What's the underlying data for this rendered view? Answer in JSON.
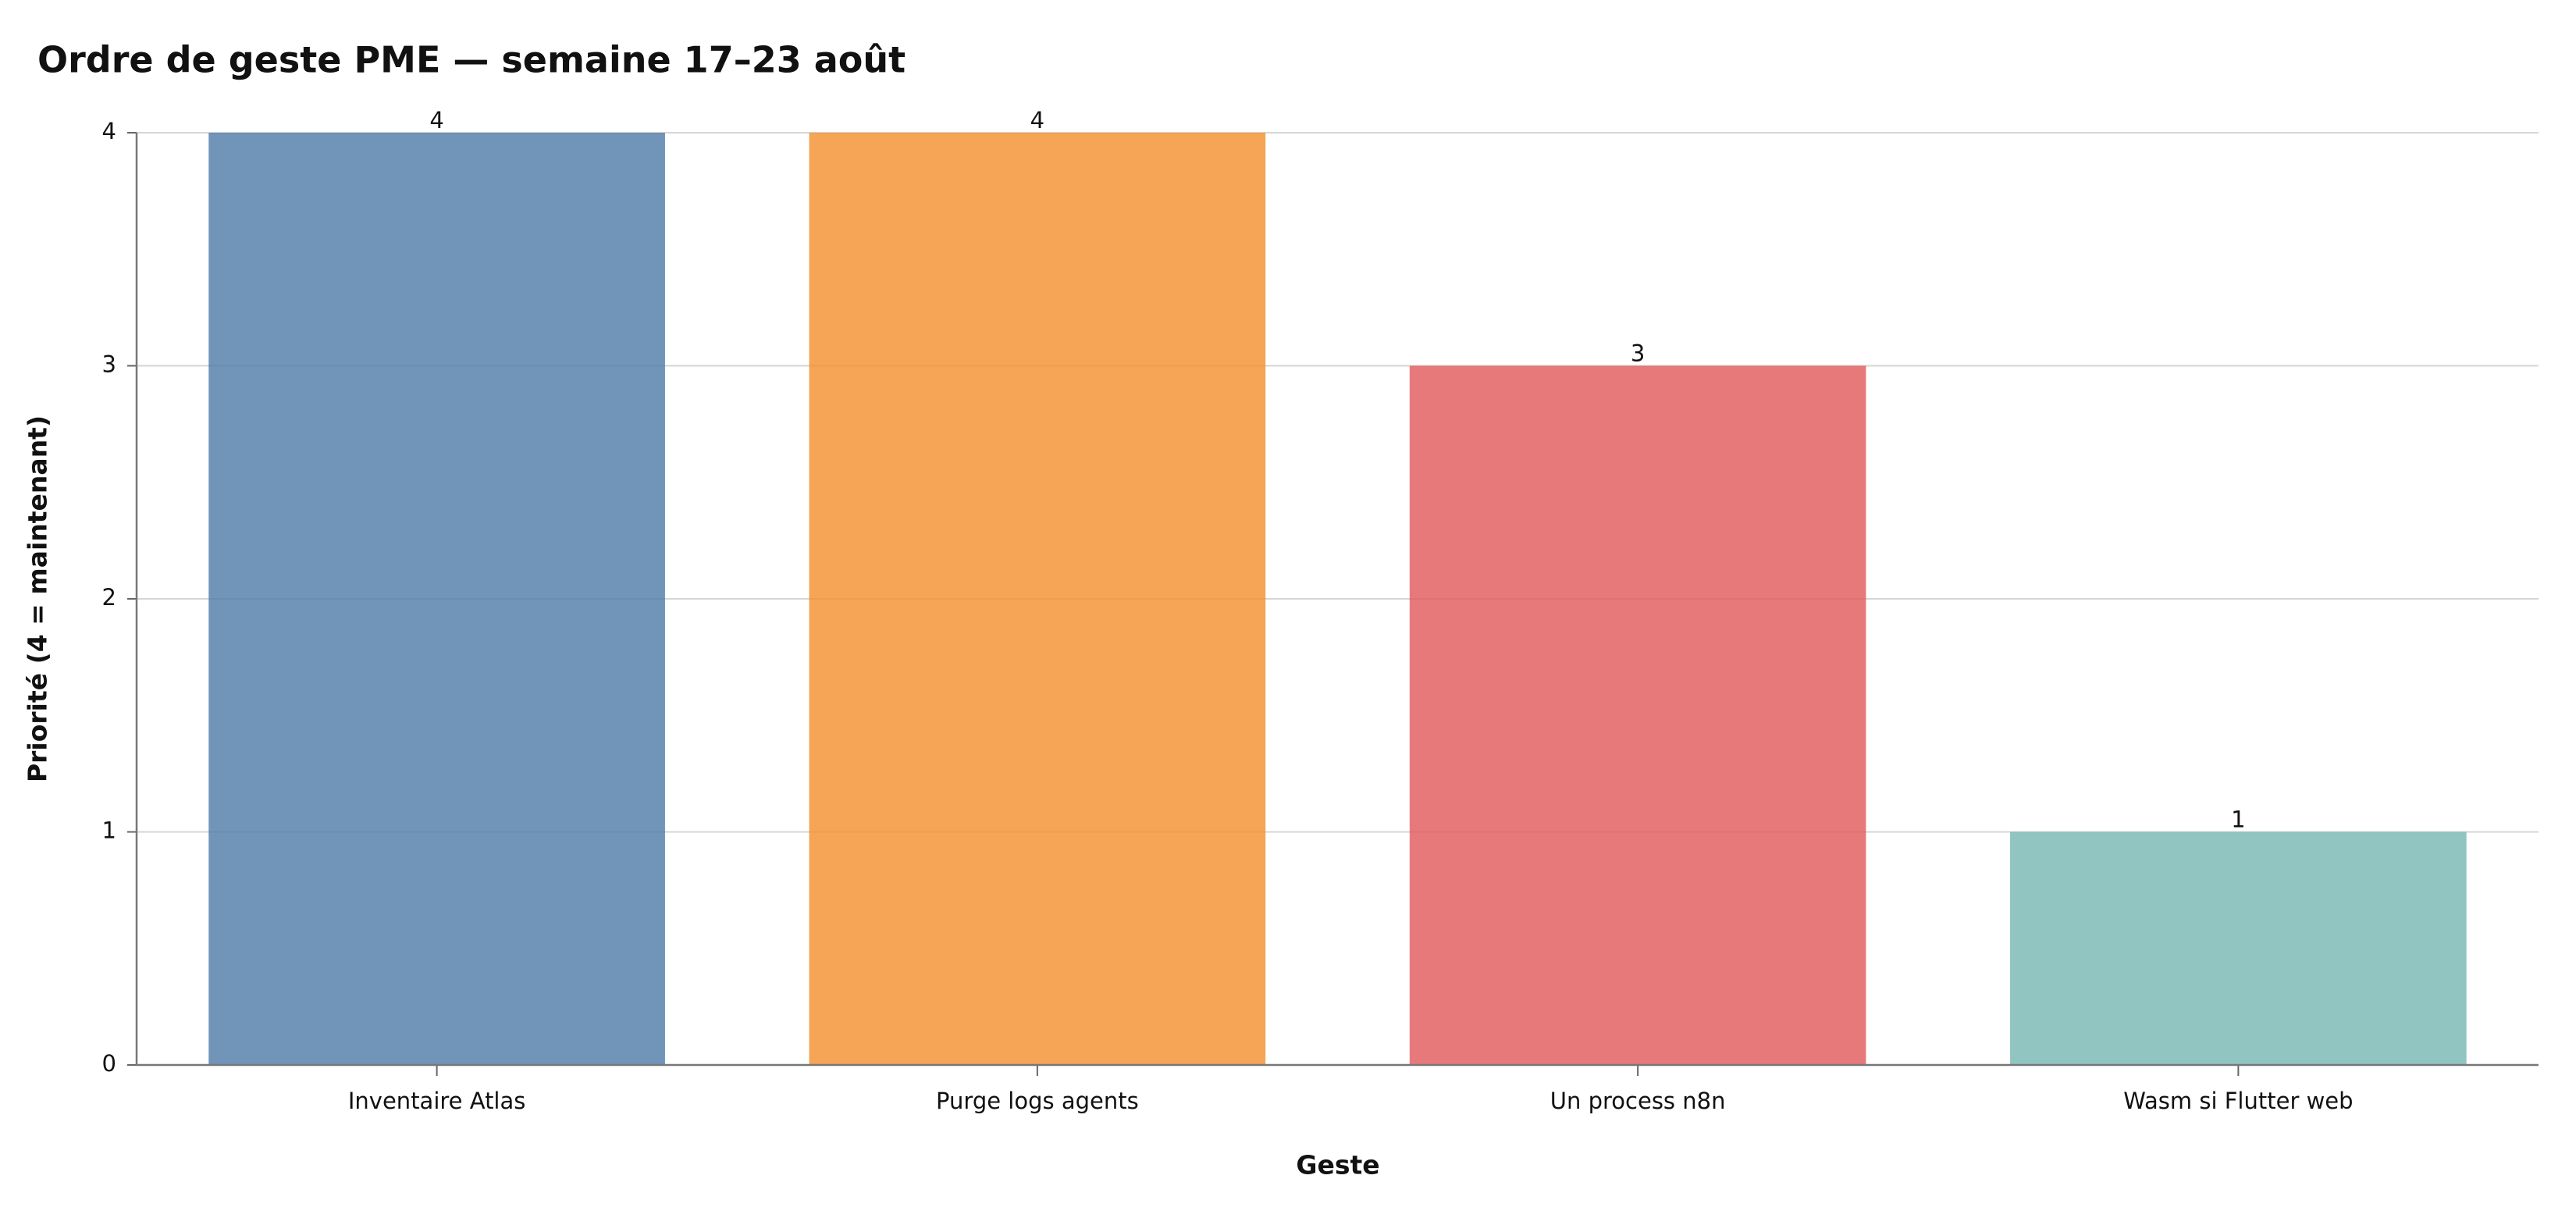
{
  "chart_data": {
    "type": "bar",
    "title": "Ordre de geste PME — semaine 17–23 août",
    "x_label": "Geste",
    "y_label": "Priorité (4 = maintenant)",
    "categories": [
      "Inventaire Atlas",
      "Purge logs agents",
      "Un process n8n",
      "Wasm si Flutter web"
    ],
    "values": [
      4,
      4,
      3,
      1
    ],
    "colors": [
      "#4e79a7",
      "#f28e2b",
      "#e15759",
      "#76b7b2"
    ],
    "ylim": [
      0,
      4
    ],
    "yticks": [
      0,
      1,
      2,
      3,
      4
    ],
    "grid": true
  }
}
